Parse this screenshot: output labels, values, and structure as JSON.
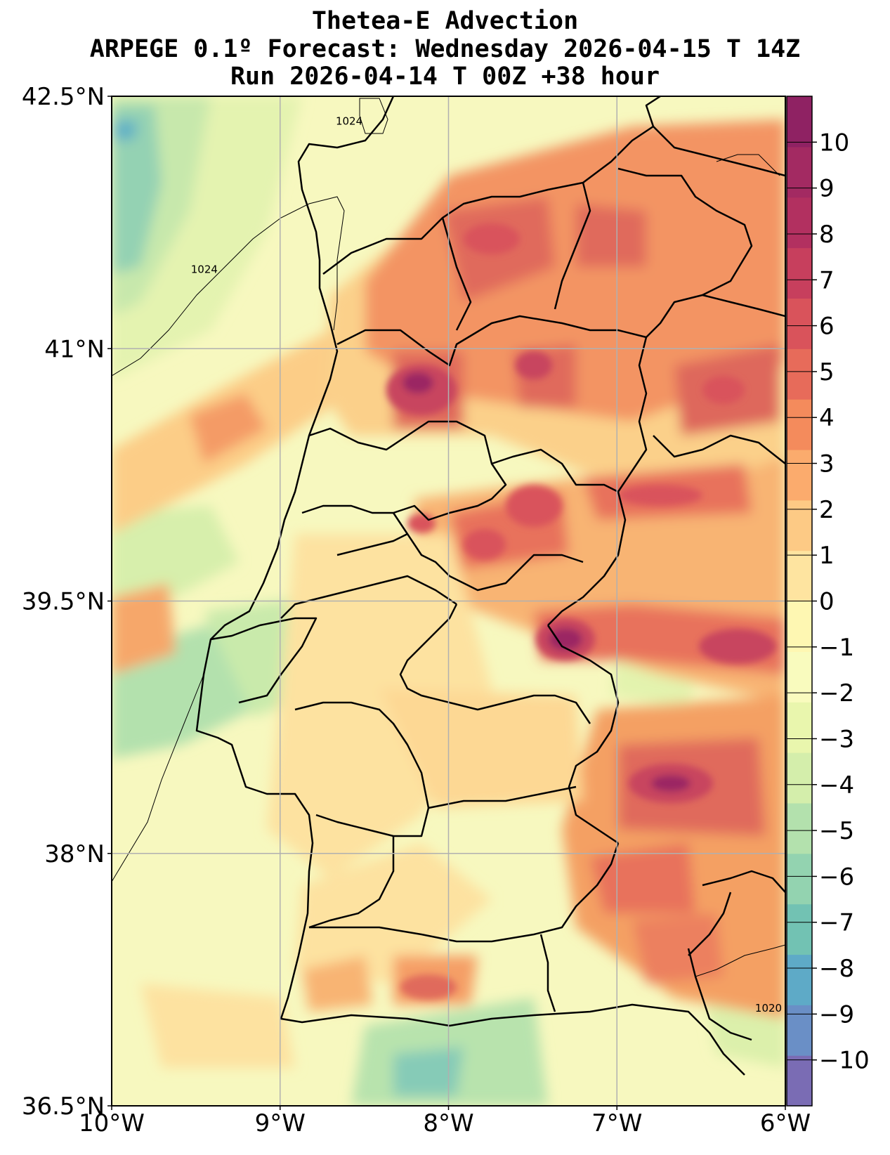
{
  "title": {
    "line1": "Thetea-E Advection",
    "line2": "ARPEGE 0.1º Forecast: Wednesday 2026-04-15 T 14Z",
    "line3": "Run 2026-04-14 T 00Z +38 hour"
  },
  "map": {
    "lon_range": [
      -10,
      -6
    ],
    "lat_range": [
      36.5,
      42.5
    ],
    "lon_ticks": [
      {
        "value": -10,
        "label": "10°W"
      },
      {
        "value": -9,
        "label": "9°W"
      },
      {
        "value": -8,
        "label": "8°W"
      },
      {
        "value": -7,
        "label": "7°W"
      },
      {
        "value": -6,
        "label": "6°W"
      }
    ],
    "lat_ticks": [
      {
        "value": 42.5,
        "label": "42.5°N"
      },
      {
        "value": 41,
        "label": "41°N"
      },
      {
        "value": 39.5,
        "label": "39.5°N"
      },
      {
        "value": 38,
        "label": "38°N"
      },
      {
        "value": 36.5,
        "label": "36.5°N"
      }
    ],
    "grid": true,
    "isobar_labels": [
      {
        "text": "1024",
        "lon": -8.59,
        "lat": 42.33
      },
      {
        "text": "1024",
        "lon": -9.45,
        "lat": 41.45
      },
      {
        "text": "1020",
        "lon": -6.1,
        "lat": 37.06
      }
    ]
  },
  "colorbar": {
    "ticks": [
      10,
      9,
      8,
      7,
      6,
      5,
      4,
      3,
      2,
      1,
      0,
      -1,
      -2,
      -3,
      -4,
      -5,
      -6,
      -7,
      -8,
      -9,
      -10
    ],
    "tick_labels": [
      "10",
      "9",
      "8",
      "7",
      "6",
      "5",
      "4",
      "3",
      "2",
      "1",
      "0",
      "−1",
      "−2",
      "−3",
      "−4",
      "−5",
      "−6",
      "−7",
      "−8",
      "−9",
      "−10"
    ],
    "colors": [
      "#7a6cb4",
      "#6a8fc6",
      "#5eaac7",
      "#72c2b3",
      "#93d3b0",
      "#b3e1ad",
      "#d4eeab",
      "#e9f6ad",
      "#f9fbbe",
      "#fef7b2",
      "#fee4a0",
      "#fdca85",
      "#fbab6d",
      "#f48b5c",
      "#e76b5a",
      "#d9535b",
      "#c73f5d",
      "#b23060",
      "#a32a62",
      "#8f2263"
    ]
  },
  "field_colors": {
    "neg5": "#94d4b2",
    "neg4": "#b5e2ad",
    "neg3": "#cdebab",
    "neg2": "#e2f3ad",
    "neg1": "#f2f9b6",
    "zero": "#fbfbc4",
    "pos1": "#fdf2b0",
    "pos2": "#fde2a0",
    "pos3": "#fccd87",
    "pos4": "#f9b06f",
    "pos5": "#f39463",
    "pos6": "#e8725c",
    "pos7": "#da5a5c",
    "pos8": "#c8455f",
    "pos9": "#b03262",
    "pos10": "#9b2763"
  }
}
